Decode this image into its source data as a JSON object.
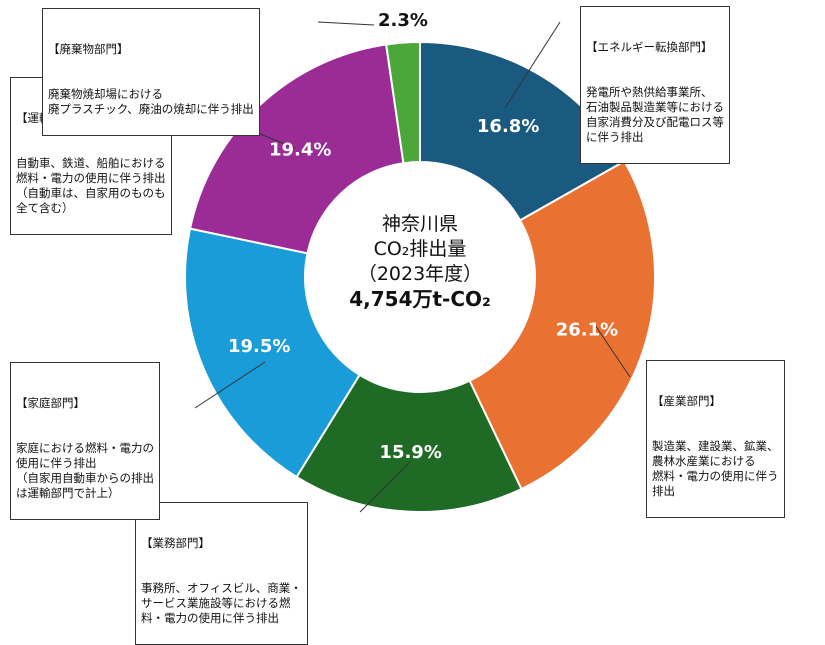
{
  "chart_data": {
    "type": "pie",
    "title_lines": [
      "神奈川県",
      "CO₂排出量",
      "（2023年度）"
    ],
    "total_label": "4,754万t-CO₂",
    "slices": [
      {
        "label": "【エネルギー転換部門】",
        "description": "発電所や熱供給事業所、\n石油製品製造業等における\n自家消費分及び配電ロス等\nに伴う排出",
        "value": 16.8,
        "value_label": "16.8%",
        "color": "#1a5a80"
      },
      {
        "label": "【産業部門】",
        "description": "製造業、建設業、鉱業、\n農林水産業における\n燃料・電力の使用に伴う\n排出",
        "value": 26.1,
        "value_label": "26.1%",
        "color": "#e97132"
      },
      {
        "label": "【業務部門】",
        "description": "事務所、オフィスビル、商業・\nサービス業施設等における燃\n料・電力の使用に伴う排出",
        "value": 15.9,
        "value_label": "15.9%",
        "color": "#1f6b25"
      },
      {
        "label": "【家庭部門】",
        "description": "家庭における燃料・電力の\n使用に伴う排出\n（自家用自動車からの排出\nは運輸部門で計上）",
        "value": 19.5,
        "value_label": "19.5%",
        "color": "#199cd7"
      },
      {
        "label": "【運輸部門】",
        "description": "自動車、鉄道、船舶における\n燃料・電力の使用に伴う排出\n（自動車は、自家用のものも\n全て含む）",
        "value": 19.4,
        "value_label": "19.4%",
        "color": "#9b2c96"
      },
      {
        "label": "【廃棄物部門】",
        "description": "廃棄物焼却場における\n廃プラスチック、廃油の焼却に伴う排出",
        "value": 2.3,
        "value_label": "2.3%",
        "color": "#4ca73b"
      }
    ]
  }
}
